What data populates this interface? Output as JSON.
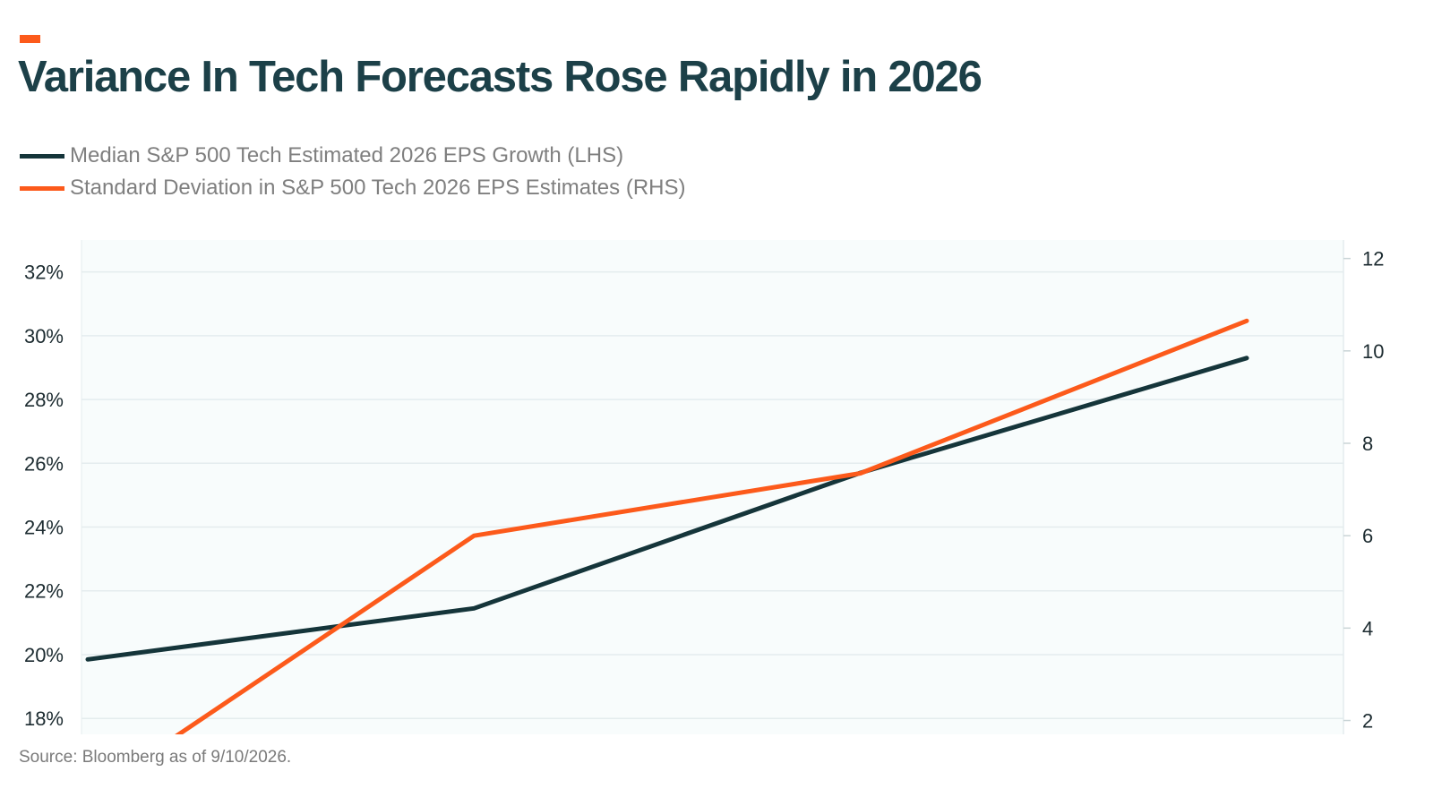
{
  "header": {
    "title": "Variance In Tech Forecasts Rose Rapidly in 2026"
  },
  "colors": {
    "accent": "#fc5a1b",
    "title": "#1c4048",
    "median_line": "#15353a",
    "stddev_line": "#fc5a1b",
    "plot_background": "#f8fcfc",
    "grid": "#e4ecee"
  },
  "legend": {
    "items": [
      {
        "label": "Median S&P 500 Tech Estimated 2026 EPS Growth (LHS)",
        "color": "#15353a"
      },
      {
        "label": "Standard Deviation in S&P 500 Tech 2026 EPS Estimates (RHS)",
        "color": "#fc5a1b"
      }
    ]
  },
  "chart_data": {
    "type": "line",
    "title": "Variance In Tech Forecasts Rose Rapidly in 2026",
    "left_axis": {
      "ticks": [
        "18%",
        "20%",
        "22%",
        "24%",
        "26%",
        "28%",
        "30%",
        "32%"
      ],
      "tick_values": [
        18,
        20,
        22,
        24,
        26,
        28,
        30,
        32
      ],
      "range": [
        17.5,
        33
      ]
    },
    "right_axis": {
      "ticks": [
        "2",
        "4",
        "6",
        "8",
        "10",
        "12"
      ],
      "tick_values": [
        2,
        4,
        6,
        8,
        10,
        12
      ],
      "range": [
        1.7,
        12.4
      ]
    },
    "grid": true,
    "series": [
      {
        "name": "Median S&P 500 Tech Estimated 2026 EPS Growth (LHS)",
        "axis": "left",
        "x": [
          0,
          1,
          2,
          3
        ],
        "values": [
          19.85,
          21.45,
          25.7,
          29.3
        ]
      },
      {
        "name": "Standard Deviation in S&P 500 Tech 2026 EPS Estimates (RHS)",
        "axis": "right",
        "x": [
          0.2,
          1,
          2,
          3
        ],
        "values": [
          1.5,
          6.0,
          7.35,
          10.65
        ]
      }
    ]
  },
  "footer": {
    "source": "Source: Bloomberg as of 9/10/2026."
  }
}
